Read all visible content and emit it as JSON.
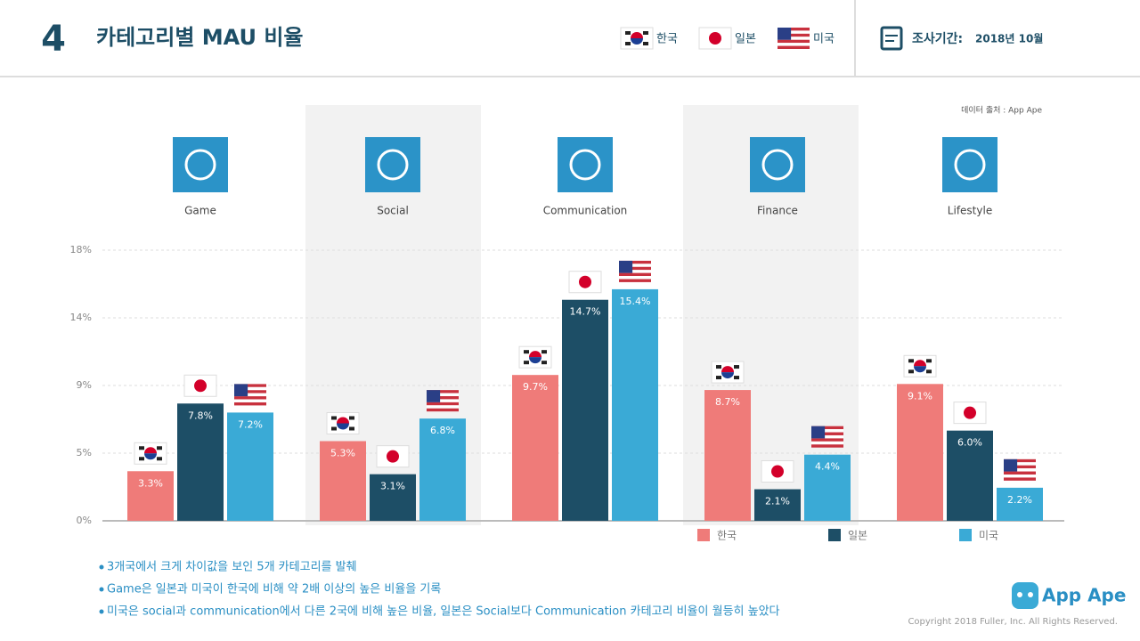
{
  "header": {
    "number": "4",
    "title": "카테고리별 MAU 비율",
    "period_label": "조사기간:",
    "period": "2018년 10월"
  },
  "chart_data": {
    "type": "bar",
    "source": "데이터 출처 : App Ape",
    "categories": [
      "Game",
      "Social",
      "Communication",
      "Finance",
      "Lifestyle"
    ],
    "series": [
      {
        "name": "한국",
        "color": "#ef7b79",
        "values": [
          3.3,
          5.3,
          9.7,
          8.7,
          9.1
        ],
        "value_labels": [
          "3.3%",
          "5.3%",
          "9.7%",
          "8.7%",
          "9.1%"
        ]
      },
      {
        "name": "일본",
        "color": "#1d4e66",
        "values": [
          7.8,
          3.1,
          14.7,
          2.1,
          6.0
        ],
        "value_labels": [
          "7.8%",
          "3.1%",
          "14.7%",
          "2.1%",
          "6.0%"
        ]
      },
      {
        "name": "미국",
        "color": "#3aaad6",
        "values": [
          7.2,
          6.8,
          15.4,
          4.4,
          2.2
        ],
        "value_labels": [
          "7.2%",
          "6.8%",
          "15.4%",
          "4.4%",
          "2.2%"
        ]
      }
    ],
    "ylim": [
      0,
      18
    ],
    "yticks": [
      {
        "value": 0,
        "label": "0%"
      },
      {
        "value": 4.5,
        "label": "5%"
      },
      {
        "value": 9,
        "label": "9%"
      },
      {
        "value": 13.5,
        "label": "14%"
      },
      {
        "value": 18,
        "label": "18%"
      }
    ],
    "grid": true
  },
  "notes": [
    "3개국에서 크게 차이값을 보인 5개 카테고리를 발췌",
    "Game은 일본과 미국이 한국에 비해 약 2배 이상의 높은 비율을 기록",
    "미국은 social과 communication에서 다른 2국에 비해 높은 비율, 일본은 Social보다 Communication 카테고리 비율이 월등히 높았다"
  ],
  "footer": {
    "logo": "App Ape",
    "copyright": "Copyright 2018 Fuller, Inc. All Rights Reserved."
  }
}
